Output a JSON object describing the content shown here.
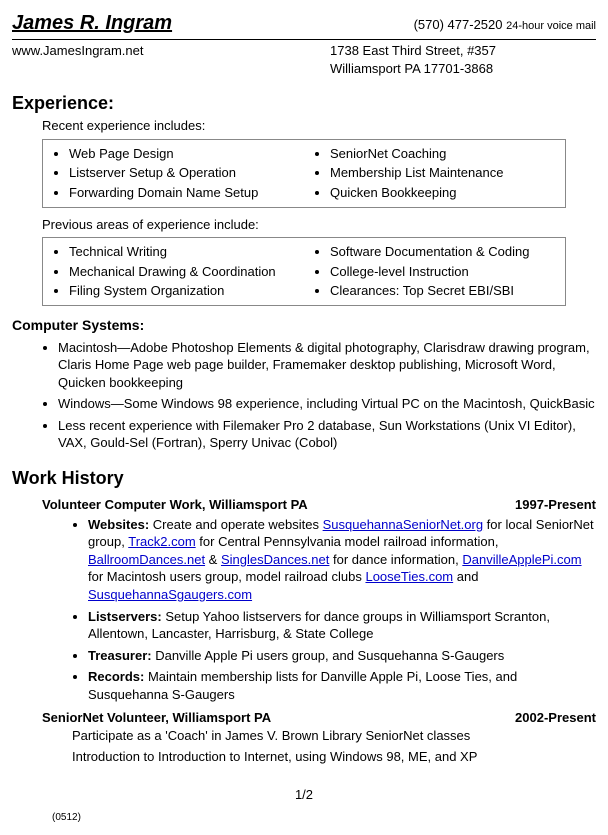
{
  "header": {
    "name": "James R. Ingram",
    "phone": "(570) 477-2520",
    "voicemail": "24-hour voice mail",
    "website": "www.JamesIngram.net",
    "address1": "1738 East Third Street, #357",
    "address2": "Williamsport PA 17701-3868"
  },
  "experience": {
    "title": "Experience:",
    "recent_label": "Recent experience includes:",
    "recent_left": [
      "Web Page Design",
      "Listserver Setup & Operation",
      "Forwarding Domain Name Setup"
    ],
    "recent_right": [
      "SeniorNet Coaching",
      "Membership List Maintenance",
      "Quicken Bookkeeping"
    ],
    "previous_label": "Previous areas of experience include:",
    "previous_left": [
      "Technical Writing",
      "Mechanical Drawing & Coordination",
      "Filing System Organization"
    ],
    "previous_right": [
      "Software Documentation & Coding",
      "College-level Instruction",
      "Clearances:  Top Secret EBI/SBI"
    ]
  },
  "computers": {
    "title": "Computer Systems:",
    "items": [
      "Macintosh—Adobe Photoshop Elements & digital photography, Clarisdraw drawing program, Claris Home Page web page builder, Framemaker  desktop publishing, Microsoft Word, Quicken bookkeeping",
      "Windows—Some Windows 98 experience, including Virtual PC on the Macintosh, QuickBasic",
      "Less recent experience with Filemaker Pro 2 database, Sun Workstations (Unix VI Editor), VAX, Gould-Sel (Fortran), Sperry Univac (Cobol)"
    ]
  },
  "work": {
    "title": "Work History",
    "job1": {
      "title": "Volunteer Computer Work, Williamsport PA",
      "dates": "1997-Present",
      "websites_label": "Websites:",
      "websites_pre": " Create and operate websites ",
      "link1": "SusquehannaSeniorNet.org",
      "websites_mid1": "  for local SeniorNet group, ",
      "link2": "Track2.com",
      "websites_mid2": " for Central Pennsylvania model railroad information, ",
      "link3": "BallroomDances.net",
      "websites_amp": " & ",
      "link4": "SinglesDances.net",
      "websites_mid3": " for dance information, ",
      "link5": "DanvilleApplePi.com",
      "websites_mid4": " for Macintosh users group, model railroad clubs ",
      "link6": "LooseTies.com",
      "websites_and": " and ",
      "link7": "SusquehannaSgaugers.com",
      "listservers_label": "Listservers:",
      "listservers_text": " Setup Yahoo listservers for dance groups in Williamsport Scranton, Allentown, Lancaster, Harrisburg, & State College",
      "treasurer_label": "Treasurer:",
      "treasurer_text": " Danville Apple Pi users group, and Susquehanna S-Gaugers",
      "records_label": "Records:",
      "records_text": " Maintain membership lists for Danville Apple Pi, Loose Ties, and Susquehanna S-Gaugers"
    },
    "job2": {
      "title": "SeniorNet Volunteer, Williamsport PA",
      "dates": "2002-Present",
      "line1": "Participate as a 'Coach' in James V. Brown Library SeniorNet classes",
      "line2": "Introduction to Introduction to Internet, using Windows 98, ME, and XP"
    }
  },
  "footer": {
    "page": "1/2",
    "code": "(0512)"
  }
}
